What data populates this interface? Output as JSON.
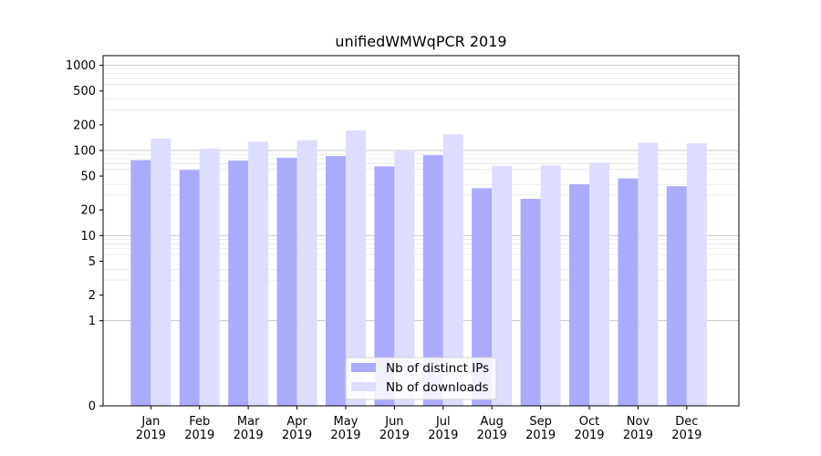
{
  "chart_data": {
    "type": "bar",
    "title": "unifiedWMWqPCR 2019",
    "xlabel": "",
    "ylabel": "",
    "yscale": "symlog",
    "ylim": [
      0,
      1300
    ],
    "yticks": [
      0,
      1,
      2,
      5,
      10,
      20,
      50,
      100,
      200,
      500,
      1000
    ],
    "grid": true,
    "legend_position": "bottom-center",
    "categories": [
      "Jan\n2019",
      "Feb\n2019",
      "Mar\n2019",
      "Apr\n2019",
      "May\n2019",
      "Jun\n2019",
      "Jul\n2019",
      "Aug\n2019",
      "Sep\n2019",
      "Oct\n2019",
      "Nov\n2019",
      "Dec\n2019"
    ],
    "series": [
      {
        "name": "Nb of distinct IPs",
        "color": "#aaaaff",
        "values": [
          77,
          59,
          76,
          82,
          86,
          65,
          88,
          36,
          27,
          40,
          47,
          38
        ]
      },
      {
        "name": "Nb of downloads",
        "color": "#ddddff",
        "values": [
          138,
          105,
          127,
          132,
          172,
          100,
          155,
          66,
          67,
          72,
          123,
          121
        ]
      }
    ]
  }
}
